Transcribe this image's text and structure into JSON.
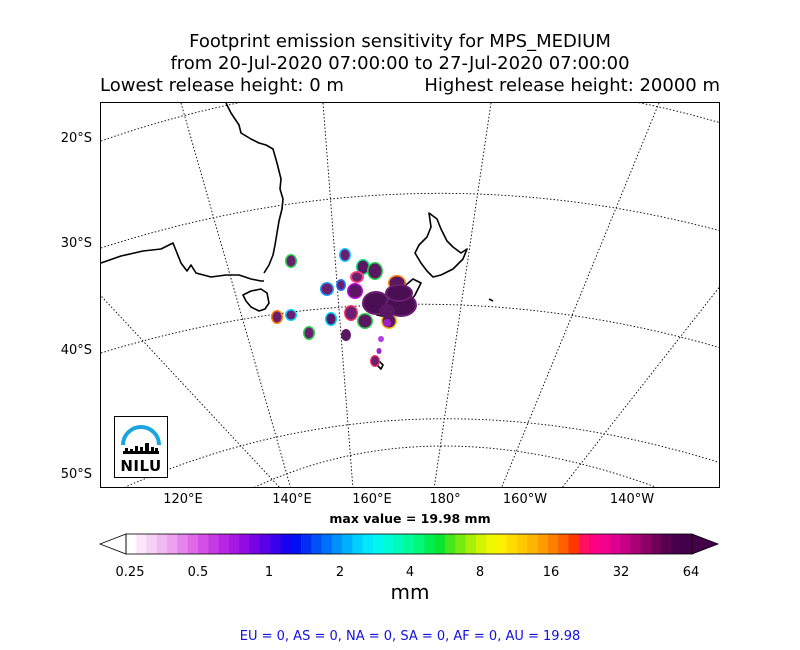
{
  "title": {
    "line1": "Footprint emission sensitivity for MPS_MEDIUM",
    "line2": "from 20-Jul-2020 07:00:00 to 27-Jul-2020 07:00:00",
    "line3_left": "Lowest release height: 0 m",
    "line3_right": "Highest release height: 20000 m"
  },
  "map": {
    "lat_labels": [
      "20°S",
      "30°S",
      "40°S",
      "50°S"
    ],
    "lon_labels": [
      "120°E",
      "140°E",
      "160°E",
      "180°",
      "160°W",
      "140°W"
    ],
    "max_value_label": "max value = 19.98 mm",
    "logo_text": "NILU",
    "logo_color": "#1ba5e0"
  },
  "colorbar": {
    "tick_labels": [
      "0.25",
      "0.5",
      "1",
      "2",
      "4",
      "8",
      "16",
      "32",
      "64"
    ],
    "units": "mm",
    "colors": [
      "#ffffff",
      "#fbe6fb",
      "#f7d0f7",
      "#f2b8f2",
      "#eca0ef",
      "#e585ec",
      "#de6ae8",
      "#d44fe5",
      "#c63ae3",
      "#b727e3",
      "#a817e3",
      "#930be3",
      "#7804e3",
      "#5b00e6",
      "#3a00e9",
      "#1a00ee",
      "#0010f2",
      "#002ef5",
      "#0050f7",
      "#0070fa",
      "#0090fc",
      "#00b0fe",
      "#00d0ff",
      "#00e8fb",
      "#00f7ef",
      "#00fbd6",
      "#00fcb8",
      "#00fc98",
      "#00f876",
      "#00ef50",
      "#0ae530",
      "#45e520",
      "#78ea10",
      "#a6ef08",
      "#d0f402",
      "#f0f800",
      "#ffef00",
      "#ffdc00",
      "#ffc800",
      "#ffb400",
      "#ff9c00",
      "#ff8000",
      "#ff6000",
      "#ff3800",
      "#ff1060",
      "#ff0080",
      "#f2008e",
      "#e00090",
      "#c80088",
      "#aa0078",
      "#8e0068",
      "#700058",
      "#580050",
      "#48004a",
      "#440048"
    ],
    "under_color": "#ffffff",
    "over_color": "#440048"
  },
  "footer": "EU = 0,  AS = 0,  NA = 0,  SA = 0,  AF = 0,  AU = 19.98"
}
